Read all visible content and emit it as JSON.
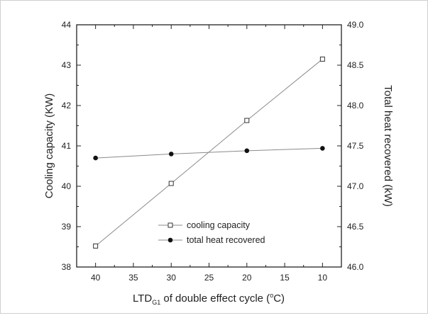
{
  "chart_data": {
    "type": "line",
    "x": [
      40,
      30,
      20,
      10
    ],
    "xlim": [
      42.5,
      7.5
    ],
    "x_ticks": [
      "40",
      "35",
      "30",
      "25",
      "20",
      "15",
      "10"
    ],
    "xlabel": {
      "prefix": "LTD",
      "subscript": "G1",
      "middle": " of double effect cycle (",
      "superscript": "o",
      "suffix": "C)"
    },
    "ylabel_left": "Cooling capacity (KW)",
    "ylabel_right": "Total heat recovered (kW)",
    "ylim_left": [
      38,
      44
    ],
    "ylim_right": [
      46.0,
      49.0
    ],
    "y_ticks_left": [
      "38",
      "39",
      "40",
      "41",
      "42",
      "43",
      "44"
    ],
    "y_ticks_right": [
      "46.0",
      "46.5",
      "47.0",
      "47.5",
      "48.0",
      "48.5",
      "49.0"
    ],
    "series": [
      {
        "name": "cooling capacity",
        "axis": "left",
        "marker": "open-square",
        "values": [
          38.52,
          40.07,
          41.63,
          43.15
        ]
      },
      {
        "name": "total heat recovered",
        "axis": "right",
        "marker": "filled-circle",
        "values": [
          47.35,
          47.4,
          47.44,
          47.47
        ]
      }
    ],
    "legend_position": "bottom-center",
    "grid": false,
    "colors": {
      "line": "#8a8a8a",
      "marker": "#333333",
      "axis": "#222222"
    }
  }
}
